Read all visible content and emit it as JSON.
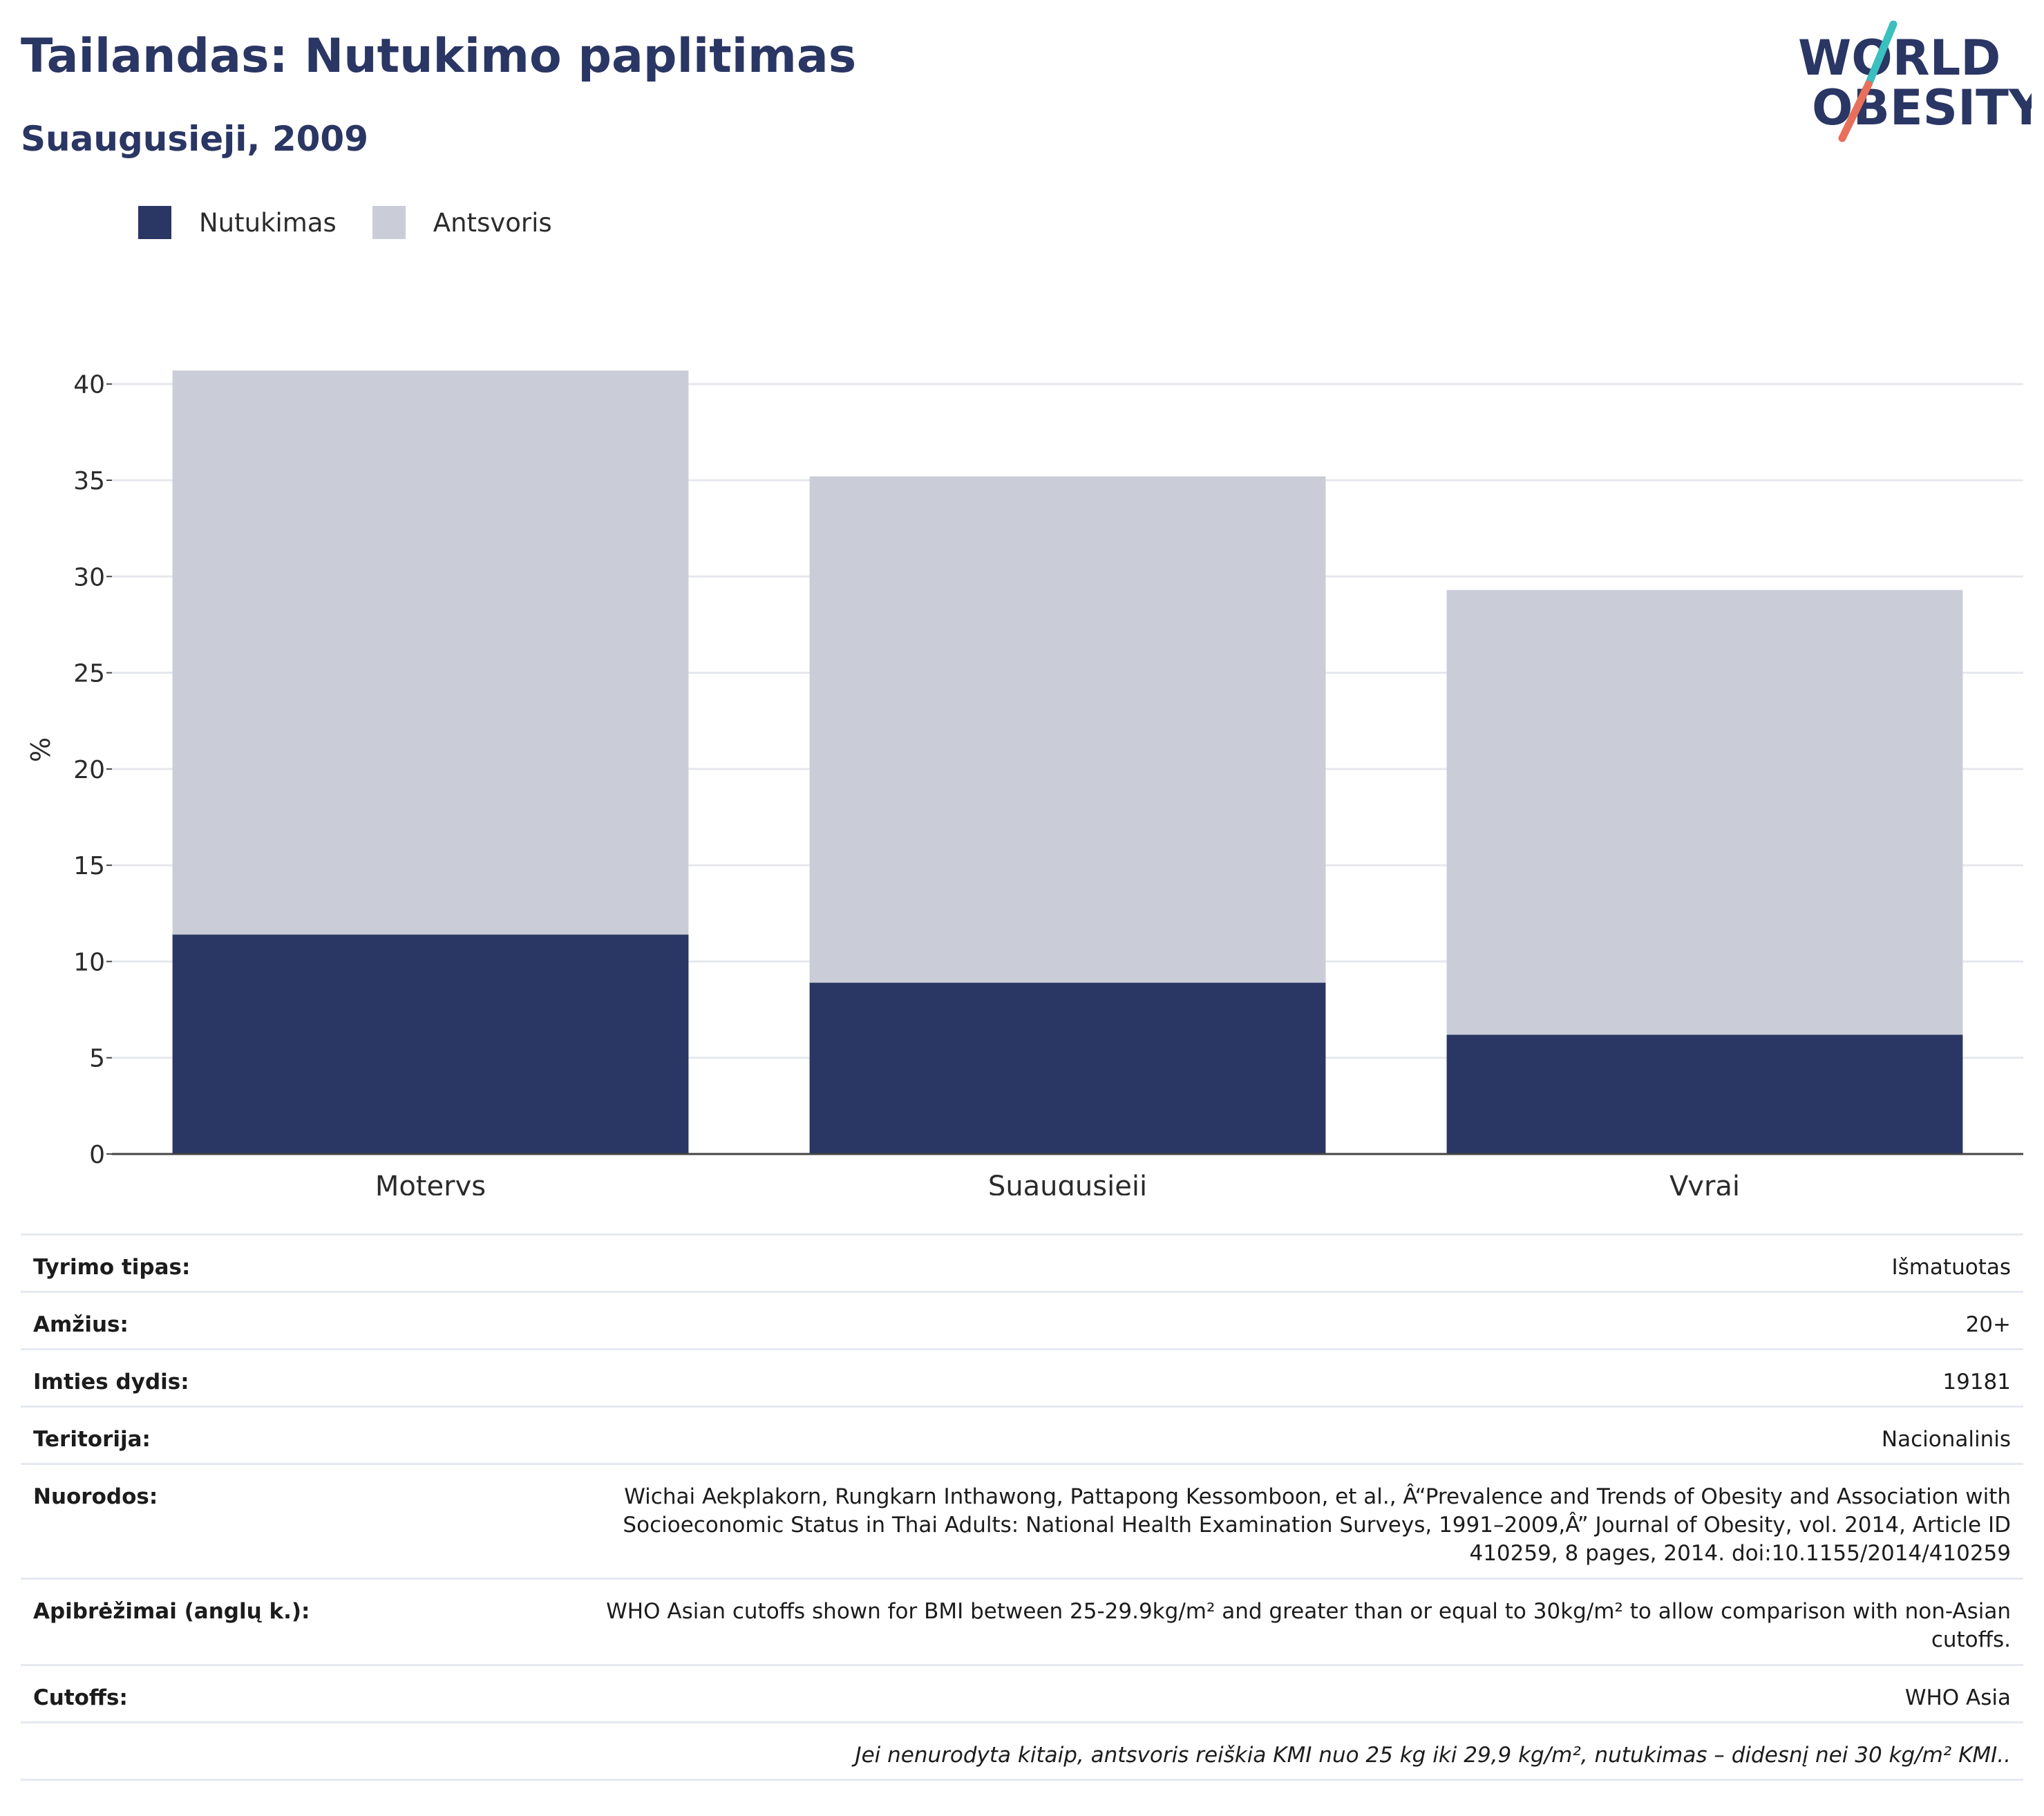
{
  "header": {
    "title": "Tailandas: Nutukimo paplitimas",
    "subtitle": "Suaugusieji, 2009"
  },
  "logo": {
    "line1": "WORLD",
    "line2": "OBESITY",
    "colors": {
      "text": "#2a3663",
      "slash_top": "#3bbfbf",
      "slash_bottom": "#e8705a"
    }
  },
  "legend": {
    "items": [
      {
        "label": "Nutukimas",
        "color": "#2a3663"
      },
      {
        "label": "Antsvoris",
        "color": "#cacdd8"
      }
    ]
  },
  "chart_data": {
    "type": "bar",
    "stacked": true,
    "categories": [
      "Moterys",
      "Suaugusieji",
      "Vyrai"
    ],
    "series": [
      {
        "name": "Nutukimas",
        "color": "#2a3663",
        "values": [
          11.4,
          8.9,
          6.2
        ]
      },
      {
        "name": "Antsvoris",
        "color": "#cacdd8",
        "values": [
          29.3,
          26.3,
          23.1
        ]
      }
    ],
    "ylabel": "%",
    "ylim": [
      0,
      42
    ],
    "yticks": [
      0,
      5,
      10,
      15,
      20,
      25,
      30,
      35,
      40
    ],
    "grid": true,
    "legend_position": "top-left"
  },
  "info": {
    "rows": [
      {
        "label": "Tyrimo tipas:",
        "value": "Išmatuotas"
      },
      {
        "label": "Amžius:",
        "value": "20+"
      },
      {
        "label": "Imties dydis:",
        "value": "19181"
      },
      {
        "label": "Teritorija:",
        "value": "Nacionalinis"
      },
      {
        "label": "Nuorodos:",
        "value": "Wichai Aekplakorn, Rungkarn Inthawong, Pattapong Kessomboon, et al., Â“Prevalence and Trends of Obesity and Association with Socioeconomic Status in Thai Adults: National Health Examination Surveys, 1991–2009,Â” Journal of Obesity, vol. 2014, Article ID 410259, 8 pages, 2014. doi:10.1155/2014/410259"
      },
      {
        "label": "Apibrėžimai (anglų k.):",
        "value": "WHO Asian cutoffs shown for BMI between 25-29.9kg/m²  and greater than or equal to 30kg/m² to allow comparison with non-Asian cutoffs."
      },
      {
        "label": "Cutoffs:",
        "value": "WHO Asia"
      }
    ],
    "footnote": "Jei nenurodyta kitaip, antsvoris reiškia KMI nuo 25 kg iki 29,9 kg/m², nutukimas – didesnį nei 30 kg/m² KMI.."
  }
}
